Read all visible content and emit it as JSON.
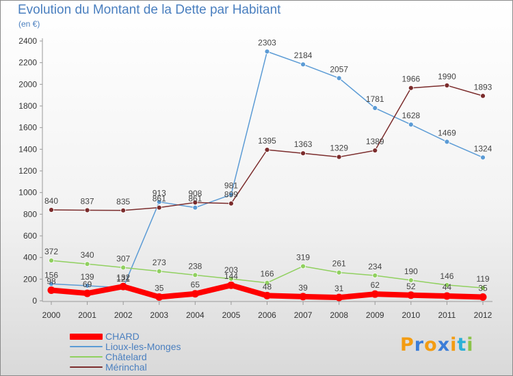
{
  "title": "Evolution du Montant de la Dette par Habitant",
  "subtitle": "(en €)",
  "logo": {
    "letters": [
      "P",
      "r",
      "o",
      "x",
      "i",
      "t",
      "i"
    ],
    "colors": [
      "#f39c12",
      "#3b7dd8",
      "#f39c12",
      "#3b7dd8",
      "#f39c12",
      "#2bb0d6",
      "#8bc34a"
    ]
  },
  "chart_data": {
    "type": "line",
    "title": "Evolution du Montant de la Dette par Habitant",
    "ylabel": "(en €)",
    "xlabel": "",
    "x": [
      "2000",
      "2001",
      "2002",
      "2003",
      "2004",
      "2005",
      "2006",
      "2007",
      "2008",
      "2009",
      "2010",
      "2011",
      "2012"
    ],
    "ylim": [
      0,
      2400
    ],
    "yticks": [
      "0",
      "200",
      "400",
      "600",
      "800",
      "1000",
      "1200",
      "1400",
      "1600",
      "1800",
      "2000",
      "2200",
      "2400"
    ],
    "grid": false,
    "legend_position": "bottom-left",
    "series": [
      {
        "name": "CHARD",
        "color": "#ff0000",
        "values": [
          98,
          69,
          132,
          35,
          65,
          144,
          48,
          39,
          31,
          62,
          52,
          44,
          35
        ],
        "labels": [
          "98",
          "69",
          "132",
          "35",
          "65",
          "144",
          "48",
          "39",
          "31",
          "62",
          "52",
          "44",
          "35"
        ]
      },
      {
        "name": "Lioux-les-Monges",
        "color": "#5b9bd5",
        "values": [
          156,
          139,
          121,
          913,
          861,
          981,
          2303,
          2184,
          2057,
          1781,
          1628,
          1469,
          1324
        ],
        "labels": [
          "156",
          "139",
          "121",
          "913",
          "861",
          "981",
          "2303",
          "2184",
          "2057",
          "1781",
          "1628",
          "1469",
          "1324"
        ]
      },
      {
        "name": "Châtelard",
        "color": "#90d05f",
        "values": [
          372,
          340,
          307,
          273,
          238,
          203,
          166,
          319,
          261,
          234,
          190,
          146,
          119
        ],
        "labels": [
          "372",
          "340",
          "307",
          "273",
          "238",
          "203",
          "166",
          "319",
          "261",
          "234",
          "190",
          "146",
          "119"
        ]
      },
      {
        "name": "Mérinchal",
        "color": "#7b2c2c",
        "values": [
          840,
          837,
          835,
          861,
          908,
          899,
          1395,
          1363,
          1329,
          1389,
          1966,
          1990,
          1893
        ],
        "labels": [
          "840",
          "837",
          "835",
          "861",
          "908",
          "899",
          "1395",
          "1363",
          "1329",
          "1389",
          "1966",
          "1990",
          "1893"
        ]
      }
    ]
  }
}
